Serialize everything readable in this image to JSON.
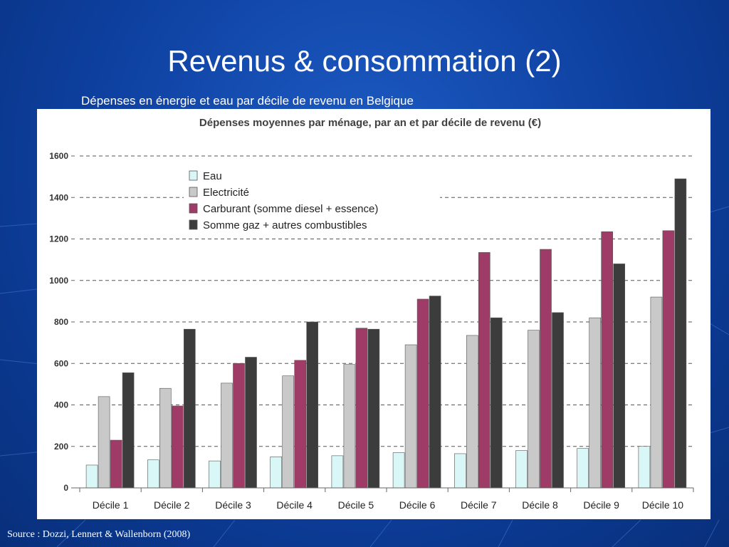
{
  "slide": {
    "title": "Revenus & consommation (2)",
    "subtitle": "Dépenses en énergie et eau par décile de revenu en Belgique",
    "source": "Source : Dozzi, Lennert & Wallenborn (2008)"
  },
  "chart_data": {
    "type": "bar",
    "title": "Dépenses moyennes par ménage, par an et par décile de revenu (€)",
    "xlabel": "",
    "ylabel": "",
    "ylim": [
      0,
      1600
    ],
    "yticks": [
      "0",
      "200",
      "400",
      "600",
      "800",
      "1000",
      "1200",
      "1400",
      "1600"
    ],
    "grid": true,
    "legend_position": "top-left",
    "categories": [
      "Décile 1",
      "Décile 2",
      "Décile 3",
      "Décile 4",
      "Décile 5",
      "Décile 6",
      "Décile 7",
      "Décile 8",
      "Décile 9",
      "Décile 10"
    ],
    "series": [
      {
        "name": "Eau",
        "color": "#d9f7f7",
        "values": [
          110,
          135,
          130,
          150,
          155,
          170,
          165,
          180,
          190,
          200
        ]
      },
      {
        "name": "Electricité",
        "color": "#c9c9c9",
        "values": [
          440,
          480,
          505,
          540,
          595,
          690,
          735,
          760,
          820,
          920
        ]
      },
      {
        "name": "Carburant (somme diesel + essence)",
        "color": "#9e3b66",
        "values": [
          230,
          395,
          600,
          615,
          770,
          910,
          1135,
          1150,
          1235,
          1240
        ]
      },
      {
        "name": "Somme gaz + autres combustibles",
        "color": "#3c3c3c",
        "values": [
          555,
          765,
          630,
          800,
          765,
          925,
          820,
          845,
          1080,
          1490
        ]
      }
    ]
  }
}
